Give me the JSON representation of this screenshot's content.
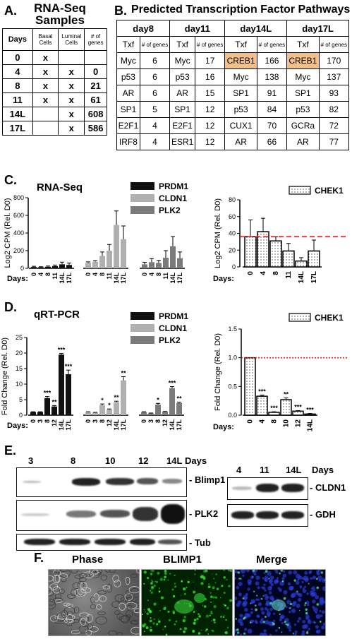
{
  "panelA": {
    "letter": "A.",
    "title_line1": "RNA-Seq",
    "title_line2": "Samples",
    "headers": [
      "Days",
      "Basal Cells",
      "Luminal Cells",
      "# of genes"
    ],
    "rows": [
      [
        "0",
        "x",
        "",
        ""
      ],
      [
        "4",
        "x",
        "x",
        "0"
      ],
      [
        "8",
        "x",
        "x",
        "21"
      ],
      [
        "11",
        "x",
        "x",
        "61"
      ],
      [
        "14L",
        "",
        "x",
        "608"
      ],
      [
        "17L",
        "",
        "x",
        "586"
      ]
    ]
  },
  "panelB": {
    "letter": "B.",
    "title": "Predicted Transcription Factor Pathways",
    "days": [
      "day8",
      "day11",
      "day14L",
      "day17L"
    ],
    "col_txf": "Txf",
    "col_genes": "# of genes",
    "rows": [
      [
        "Myc",
        "6",
        "Myc",
        "17",
        "CREB1",
        "166",
        "CREB1",
        "170"
      ],
      [
        "p53",
        "6",
        "p53",
        "16",
        "Myc",
        "138",
        "Myc",
        "137"
      ],
      [
        "AR",
        "6",
        "AR",
        "15",
        "SP1",
        "91",
        "SP1",
        "93"
      ],
      [
        "SP1",
        "5",
        "SP1",
        "12",
        "p53",
        "84",
        "p53",
        "82"
      ],
      [
        "E2F1",
        "4",
        "E2F1",
        "12",
        "CUX1",
        "70",
        "GCRa",
        "72"
      ],
      [
        "IRF8",
        "4",
        "ESR1",
        "12",
        "AR",
        "66",
        "AR",
        "77"
      ]
    ],
    "highlight_color": "#f4c08a"
  },
  "panelC": {
    "letter": "C.",
    "title": "RNA-Seq",
    "days_label": "Days:"
  },
  "panelD": {
    "letter": "D.",
    "title": "qRT-PCR",
    "days_label": "Days:"
  },
  "panelE": {
    "letter": "E.",
    "days_word": "Days",
    "left_days": [
      "3",
      "8",
      "10",
      "12",
      "14L"
    ],
    "right_days": [
      "4",
      "11",
      "14L"
    ],
    "left_labels": [
      "- Blimp1",
      "- PLK2",
      "- Tub"
    ],
    "right_labels": [
      "- CLDN1",
      "- GDH"
    ]
  },
  "panelF": {
    "letter": "F.",
    "titles": [
      "Phase",
      "BLIMP1",
      "Merge"
    ]
  },
  "chart_data": [
    {
      "type": "bar",
      "title": "RNA-Seq",
      "ylabel": "Log2 CPM (Rel. D0)",
      "ylim": [
        0,
        800
      ],
      "yticks": [
        0,
        200,
        400,
        600,
        800
      ],
      "categories": [
        "0",
        "4",
        "8",
        "11",
        "14L",
        "17L"
      ],
      "series": [
        {
          "name": "PRDM1",
          "color": "#111111",
          "values": [
            15,
            12,
            18,
            25,
            45,
            38
          ],
          "errors": [
            8,
            6,
            8,
            12,
            25,
            22
          ]
        },
        {
          "name": "CLDN1",
          "color": "#b0b0b0",
          "values": [
            65,
            75,
            140,
            200,
            490,
            330
          ],
          "errors": [
            8,
            12,
            45,
            70,
            160,
            150
          ]
        },
        {
          "name": "PLK2",
          "color": "#7a7a7a",
          "values": [
            45,
            70,
            60,
            120,
            250,
            115
          ],
          "errors": [
            22,
            40,
            30,
            80,
            110,
            70
          ]
        }
      ]
    },
    {
      "type": "bar",
      "ylabel": "Log2 CPM (Rel. D0)",
      "ylim": [
        0,
        80
      ],
      "yticks": [
        0,
        20,
        40,
        60,
        80
      ],
      "categories": [
        "0",
        "4",
        "8",
        "11",
        "14L",
        "17L"
      ],
      "reference_line": 36,
      "series": [
        {
          "name": "CHEK1",
          "values": [
            36,
            42,
            31,
            19,
            7,
            19
          ],
          "errors": [
            20,
            16,
            5,
            9,
            4,
            13
          ]
        }
      ]
    },
    {
      "type": "bar",
      "title": "qRT-PCR",
      "ylabel": "Fold Change (Rel. D0)",
      "ylim": [
        0,
        25
      ],
      "yticks": [
        0,
        5,
        10,
        15,
        20,
        25
      ],
      "categories": [
        "0",
        "3",
        "8",
        "12",
        "14L",
        "17L"
      ],
      "series": [
        {
          "name": "PRDM1",
          "color": "#111111",
          "values": [
            1,
            1,
            5.5,
            2.8,
            19.5,
            13.2
          ],
          "errors": [
            0.1,
            0.1,
            0.5,
            0.3,
            0.4,
            1.3
          ],
          "sig": [
            "",
            "",
            "***",
            "**",
            "***",
            "***"
          ]
        },
        {
          "name": "CLDN1",
          "color": "#b0b0b0",
          "values": [
            1,
            0.8,
            3.2,
            1.8,
            4.2,
            11.2
          ],
          "errors": [
            0.1,
            0.1,
            0.4,
            0.2,
            0.3,
            1.2
          ],
          "sig": [
            "",
            "",
            "*",
            "*",
            "**",
            "**"
          ]
        },
        {
          "name": "PLK2",
          "color": "#7a7a7a",
          "values": [
            1,
            0.6,
            3.4,
            1.1,
            8.7,
            3.9
          ],
          "errors": [
            0.1,
            0.1,
            0.4,
            0.1,
            0.5,
            0.3
          ],
          "sig": [
            "",
            "",
            "*",
            "",
            "***",
            "**"
          ]
        }
      ]
    },
    {
      "type": "bar",
      "ylabel": "Fold Change (Rel. D0)",
      "ylim": [
        0,
        1.5
      ],
      "yticks": [
        0.0,
        0.5,
        1.0,
        1.5
      ],
      "categories": [
        "0",
        "4",
        "8",
        "10",
        "12",
        "14L"
      ],
      "reference_line": 1.0,
      "series": [
        {
          "name": "CHEK1",
          "values": [
            1.0,
            0.33,
            0.05,
            0.27,
            0.07,
            0.02
          ],
          "errors": [
            0,
            0.02,
            0.01,
            0.03,
            0.01,
            0.01
          ],
          "sig": [
            "",
            "***",
            "***",
            "**",
            "***",
            "***"
          ]
        }
      ]
    }
  ]
}
